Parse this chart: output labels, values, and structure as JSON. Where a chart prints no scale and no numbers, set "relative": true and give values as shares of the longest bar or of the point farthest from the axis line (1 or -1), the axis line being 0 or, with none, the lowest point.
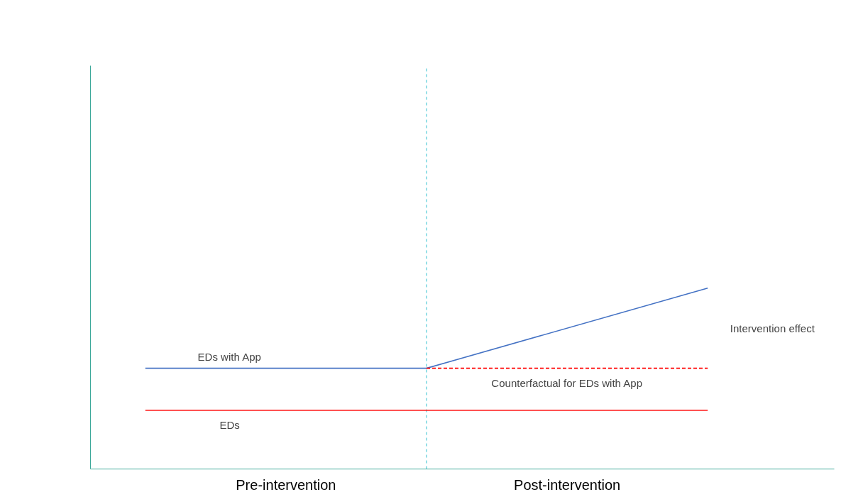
{
  "chart_data": {
    "type": "line",
    "relative": true,
    "categories": [
      null,
      null,
      null
    ],
    "series": [
      {
        "name": "EDs with App",
        "color": "#4472c4",
        "values": [
          0.557,
          0.557,
          1
        ],
        "line_style": "solid"
      },
      {
        "name": "EDs",
        "color": "#ff0000",
        "values": [
          0.325,
          0.325,
          0.325
        ],
        "line_style": "solid"
      },
      {
        "name": "Counterfactual for EDs with App",
        "color": "#ff0000",
        "values": [
          null,
          0.557,
          0.557
        ],
        "line_style": "dashed"
      }
    ],
    "annotations": [
      "Pre-intervention",
      "Post-intervention",
      "Intervention effect"
    ],
    "grid": false,
    "marker": "none"
  }
}
